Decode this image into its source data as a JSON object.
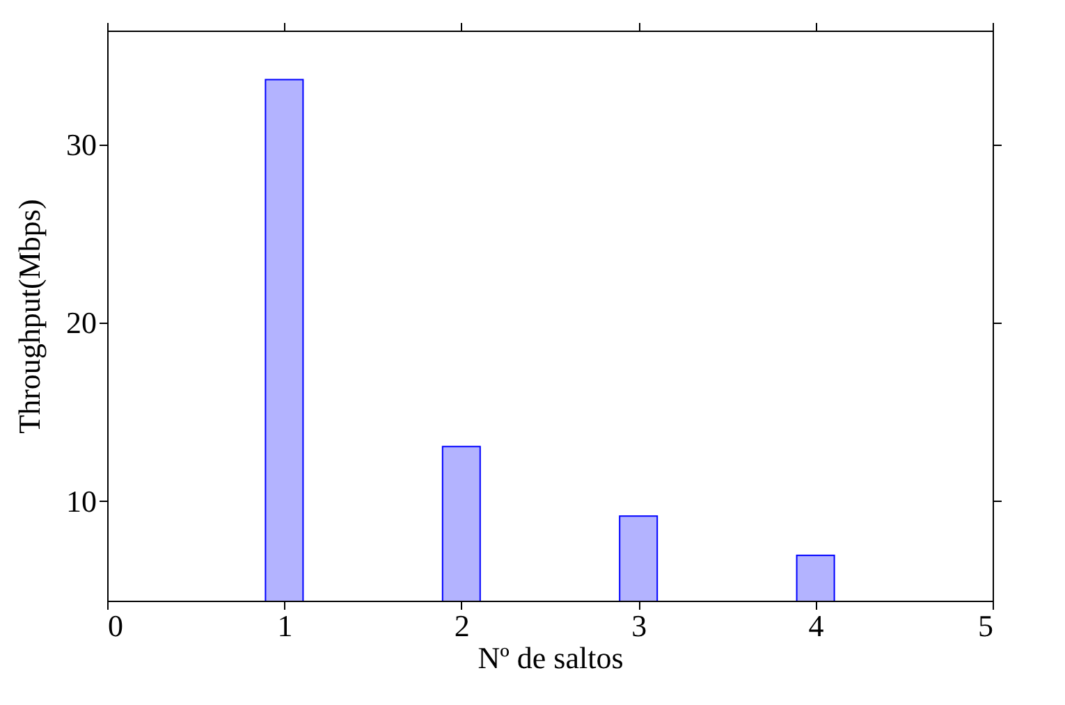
{
  "chart_data": {
    "type": "bar",
    "xlabel": "Nº de saltos",
    "ylabel": "Throughput(Mbps)",
    "x": [
      1,
      2,
      3,
      4
    ],
    "values": [
      33.65,
      13.05,
      9.15,
      6.95
    ],
    "color": "#b3b3ff",
    "xlim": [
      0,
      5
    ],
    "xticks": [
      0,
      1,
      2,
      3,
      4,
      5
    ],
    "ylim": [
      4.4,
      36.4
    ],
    "yticks": [
      10,
      20,
      30
    ],
    "grid": false
  }
}
